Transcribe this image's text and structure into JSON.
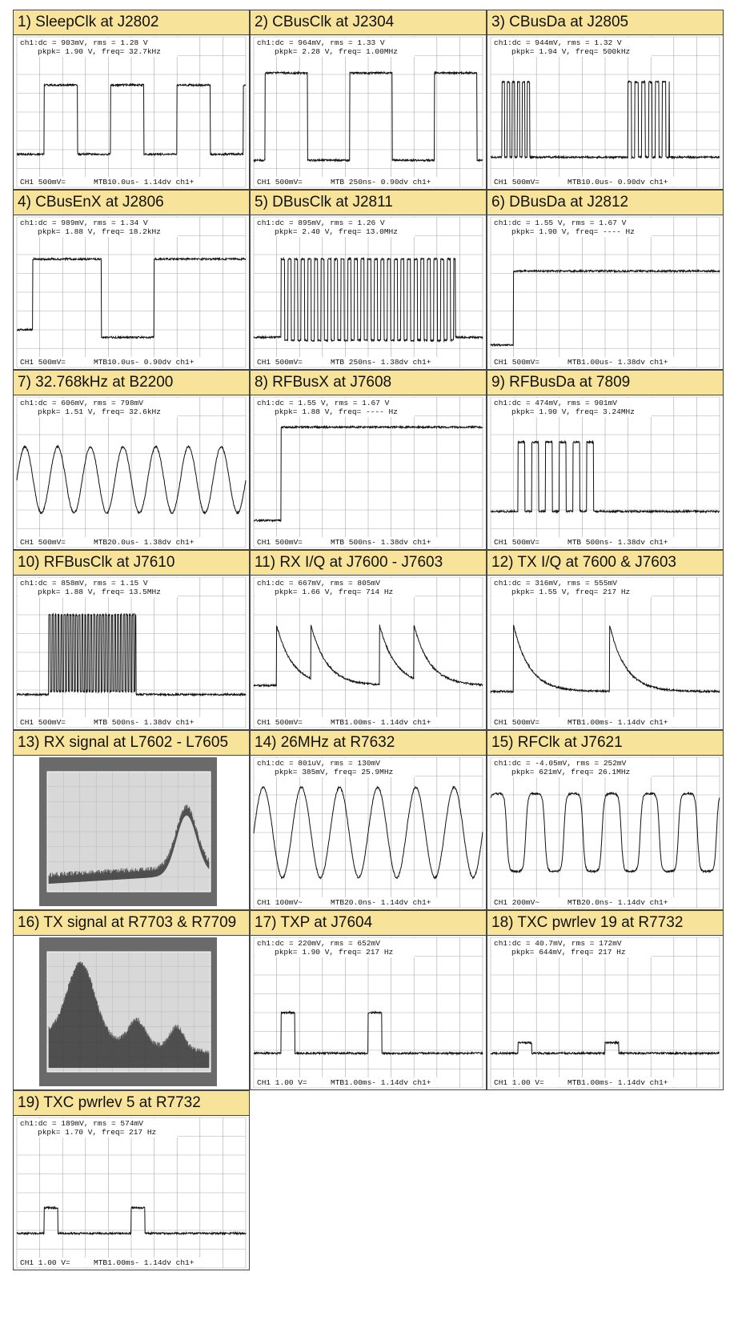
{
  "panels": [
    {
      "title": "1) SleepClk at J2802",
      "readout": [
        "ch1:dc = 903mV, rms = 1.28 V",
        "pkpk= 1.90 V, freq= 32.7kHz"
      ],
      "footer": [
        "CH1 500mV=",
        "MTB10.0us- 1.14dv ch1+"
      ]
    },
    {
      "title": "2) CBusClk at J2304",
      "readout": [
        "ch1:dc = 964mV, rms = 1.33 V",
        "pkpk= 2.28 V, freq= 1.00MHz"
      ],
      "footer": [
        "CH1 500mV=",
        "MTB 250ns- 0.90dv ch1+"
      ]
    },
    {
      "title": "3) CBusDa at J2805",
      "readout": [
        "ch1:dc = 944mV, rms = 1.32 V",
        "pkpk= 1.94 V, freq= 500kHz"
      ],
      "footer": [
        "CH1 500mV=",
        "MTB10.0us- 0.90dv ch1+"
      ]
    },
    {
      "title": "4) CBusEnX at J2806",
      "readout": [
        "ch1:dc = 989mV, rms = 1.34 V",
        "pkpk= 1.88 V, freq= 18.2kHz"
      ],
      "footer": [
        "CH1 500mV=",
        "MTB10.0us- 0.90dv ch1+"
      ]
    },
    {
      "title": "5) DBusClk at J2811",
      "readout": [
        "ch1:dc = 895mV, rms = 1.26 V",
        "pkpk= 2.40 V, freq= 13.0MHz"
      ],
      "footer": [
        "CH1 500mV=",
        "MTB 250ns- 1.38dv ch1+"
      ]
    },
    {
      "title": "6) DBusDa at J2812",
      "readout": [
        "ch1:dc = 1.55 V, rms = 1.67 V",
        "pkpk= 1.90 V, freq= ---- Hz"
      ],
      "footer": [
        "CH1 500mV=",
        "MTB1.00us- 1.38dv ch1+"
      ]
    },
    {
      "title": "7) 32.768kHz at B2200",
      "readout": [
        "ch1:dc = 606mV, rms = 798mV",
        "pkpk= 1.51 V, freq= 32.6kHz"
      ],
      "footer": [
        "CH1 500mV=",
        "MTB20.0us- 1.38dv ch1+"
      ]
    },
    {
      "title": "8) RFBusX at J7608",
      "readout": [
        "ch1:dc = 1.55 V, rms = 1.67 V",
        "pkpk= 1.88 V, freq= ---- Hz"
      ],
      "footer": [
        "CH1 500mV=",
        "MTB 500ns- 1.38dv ch1+"
      ]
    },
    {
      "title": "9) RFBusDa at 7809",
      "readout": [
        "ch1:dc = 474mV, rms = 901mV",
        "pkpk= 1.90 V, freq= 3.24MHz"
      ],
      "footer": [
        "CH1 500mV=",
        "MTB 500ns- 1.38dv ch1+"
      ]
    },
    {
      "title": "10) RFBusClk at J7610",
      "readout": [
        "ch1:dc = 858mV, rms = 1.15 V",
        "pkpk= 1.88 V, freq= 13.5MHz"
      ],
      "footer": [
        "CH1 500mV=",
        "MTB 500ns- 1.38dv ch1+"
      ]
    },
    {
      "title": "11) RX I/Q at J7600 - J7603",
      "readout": [
        "ch1:dc = 667mV, rms = 805mV",
        "pkpk= 1.66 V, freq= 714 Hz"
      ],
      "footer": [
        "CH1 500mV=",
        "MTB1.00ms- 1.14dv ch1+"
      ]
    },
    {
      "title": "12) TX I/Q at 7600 & J7603",
      "readout": [
        "ch1:dc = 316mV, rms = 555mV",
        "pkpk= 1.55 V, freq= 217 Hz"
      ],
      "footer": [
        "CH1 500mV=",
        "MTB1.00ms- 1.14dv ch1+"
      ]
    },
    {
      "title": "13) RX signal at L7602 - L7605"
    },
    {
      "title": "14) 26MHz at R7632",
      "readout": [
        "ch1:dc = 801uV, rms = 130mV",
        "pkpk= 385mV, freq= 25.9MHz"
      ],
      "footer": [
        "CH1 100mV~",
        "MTB20.0ns- 1.14dv ch1+"
      ]
    },
    {
      "title": "15) RFClk at J7621",
      "readout": [
        "ch1:dc = -4.05mV, rms = 252mV",
        "pkpk= 621mV, freq= 26.1MHz"
      ],
      "footer": [
        "CH1 200mV~",
        "MTB20.0ns- 1.14dv ch1+"
      ]
    },
    {
      "title": "16) TX signal at R7703 & R7709"
    },
    {
      "title": "17) TXP at J7604",
      "readout": [
        "ch1:dc = 220mV, rms = 652mV",
        "pkpk= 1.90 V, freq= 217 Hz"
      ],
      "footer": [
        "CH1 1.00 V=",
        "MTB1.00ms- 1.14dv ch1+"
      ]
    },
    {
      "title": "18) TXC pwrlev 19 at R7732",
      "readout": [
        "ch1:dc = 40.7mV, rms = 172mV",
        "pkpk= 644mV, freq= 217 Hz"
      ],
      "footer": [
        "CH1 1.00 V=",
        "MTB1.00ms- 1.14dv ch1+"
      ]
    },
    {
      "title": "19) TXC pwrlev 5 at R7732",
      "readout": [
        "ch1:dc = 189mV, rms = 574mV",
        "pkpk= 1.70 V, freq= 217 Hz"
      ],
      "footer": [
        "CH1 1.00 V=",
        "MTB1.00ms- 1.14dv ch1+"
      ]
    }
  ]
}
